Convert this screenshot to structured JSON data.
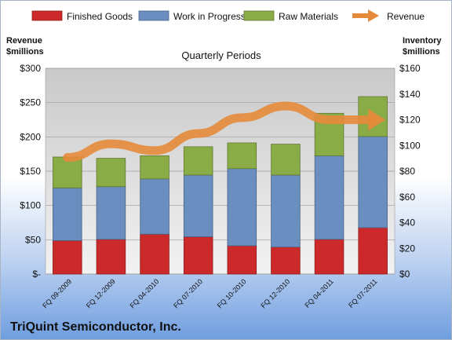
{
  "company_name": "TriQuint Semiconductor, Inc.",
  "chart_data": {
    "type": "bar",
    "stacked": true,
    "title": "Quarterly Periods",
    "left_axis_label": [
      "Revenue",
      "$millions"
    ],
    "right_axis_label": [
      "Inventory",
      "$millions"
    ],
    "categories": [
      "FQ 09-2009",
      "FQ 12-2009",
      "FQ 04-2010",
      "FQ 07-2010",
      "FQ 10-2010",
      "FQ 12-2010",
      "FQ 04-2011",
      "FQ 07-2011"
    ],
    "left_axis": {
      "min": 0,
      "max": 300,
      "step": 50,
      "ticks": [
        "$-",
        "$50",
        "$100",
        "$150",
        "$200",
        "$250",
        "$300"
      ]
    },
    "right_axis": {
      "min": 0,
      "max": 160,
      "step": 20,
      "ticks": [
        "$0",
        "$20",
        "$40",
        "$60",
        "$80",
        "$100",
        "$120",
        "$140",
        "$160"
      ]
    },
    "series": [
      {
        "name": "Finished Goods",
        "axis": "right",
        "color": "#cc2a2a",
        "values": [
          26,
          27,
          31,
          29,
          22,
          21,
          27,
          36
        ]
      },
      {
        "name": "Work in Progress",
        "axis": "right",
        "color": "#6a8ebf",
        "values": [
          41,
          41,
          43,
          48,
          60,
          56,
          65,
          71
        ]
      },
      {
        "name": "Raw Materials",
        "axis": "right",
        "color": "#8aac46",
        "values": [
          24,
          22,
          18,
          22,
          20,
          24,
          33,
          31
        ]
      }
    ],
    "line_series": {
      "name": "Revenue",
      "axis": "left",
      "color": "#e58a3a",
      "values": [
        170,
        190,
        180,
        205,
        228,
        245,
        225,
        225
      ]
    },
    "grid": true,
    "legend_position": "top"
  }
}
